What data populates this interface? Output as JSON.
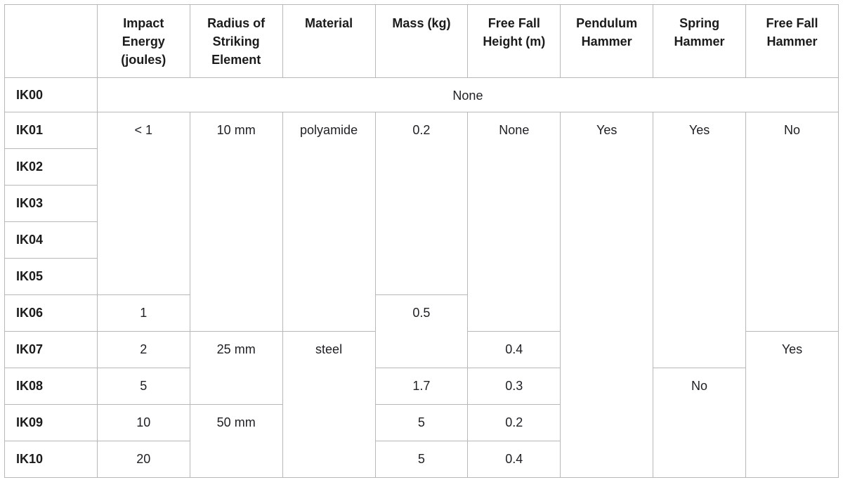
{
  "table": {
    "columns": [
      {
        "label": ""
      },
      {
        "label": "Impact Energy (joules)"
      },
      {
        "label": "Radius of Striking Element"
      },
      {
        "label": "Material"
      },
      {
        "label": "Mass (kg)"
      },
      {
        "label": "Free Fall Height (m)"
      },
      {
        "label": "Pendulum Hammer"
      },
      {
        "label": "Spring Hammer"
      },
      {
        "label": "Free Fall Hammer"
      }
    ],
    "rows": [
      {
        "label": "IK00",
        "cells": [
          {
            "text": "None",
            "colspan": 8
          }
        ]
      },
      {
        "label": "IK01",
        "cells": [
          {
            "text": "< 1",
            "rowspan": 5
          },
          {
            "text": "10 mm",
            "rowspan": 6
          },
          {
            "text": "polyamide",
            "rowspan": 6
          },
          {
            "text": "0.2",
            "rowspan": 5
          },
          {
            "text": "None",
            "rowspan": 6
          },
          {
            "text": "Yes",
            "rowspan": 10
          },
          {
            "text": "Yes",
            "rowspan": 7
          },
          {
            "text": "No",
            "rowspan": 6
          }
        ]
      },
      {
        "label": "IK02",
        "cells": []
      },
      {
        "label": "IK03",
        "cells": []
      },
      {
        "label": "IK04",
        "cells": []
      },
      {
        "label": "IK05",
        "cells": []
      },
      {
        "label": "IK06",
        "cells": [
          {
            "text": "1"
          },
          {
            "text": "0.5",
            "rowspan": 2
          }
        ]
      },
      {
        "label": "IK07",
        "cells": [
          {
            "text": "2"
          },
          {
            "text": "25 mm",
            "rowspan": 2
          },
          {
            "text": "steel",
            "rowspan": 4
          },
          {
            "text": "0.4"
          },
          {
            "text": "Yes",
            "rowspan": 4
          }
        ]
      },
      {
        "label": "IK08",
        "cells": [
          {
            "text": "5"
          },
          {
            "text": "1.7"
          },
          {
            "text": "0.3"
          },
          {
            "text": "No",
            "rowspan": 3
          }
        ]
      },
      {
        "label": "IK09",
        "cells": [
          {
            "text": "10"
          },
          {
            "text": "50 mm",
            "rowspan": 2
          },
          {
            "text": "5"
          },
          {
            "text": "0.2"
          }
        ]
      },
      {
        "label": "IK10",
        "cells": [
          {
            "text": "20"
          },
          {
            "text": "5"
          },
          {
            "text": "0.4"
          }
        ]
      }
    ]
  },
  "colors": {
    "border": "#b8b8b8",
    "text": "#202124",
    "background": "#ffffff"
  }
}
